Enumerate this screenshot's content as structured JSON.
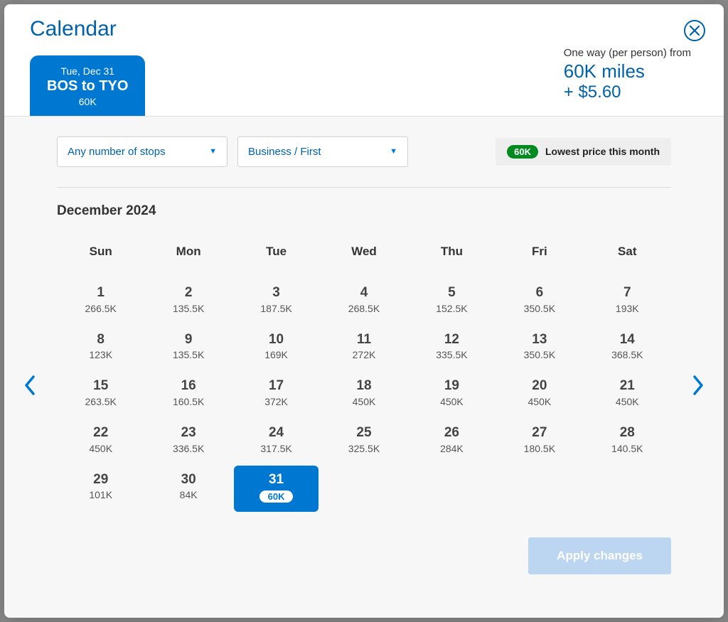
{
  "colors": {
    "brand_blue": "#0078d2",
    "brand_dark_blue": "#0061ab",
    "badge_green": "#008a1f",
    "body_bg": "#f7f7f7",
    "apply_disabled": "#bcd6f2"
  },
  "header": {
    "title": "Calendar",
    "trip": {
      "date": "Tue, Dec 31",
      "route": "BOS to TYO",
      "price": "60K"
    },
    "fare": {
      "label": "One way (per person) from",
      "miles": "60K miles",
      "cash": "+ $5.60"
    }
  },
  "filters": {
    "stops": "Any number of stops",
    "cabin": "Business / First",
    "lowest": {
      "pill": "60K",
      "text": "Lowest price this month"
    }
  },
  "calendar": {
    "month_label": "December 2024",
    "day_headers": [
      "Sun",
      "Mon",
      "Tue",
      "Wed",
      "Thu",
      "Fri",
      "Sat"
    ],
    "days": [
      {
        "n": "1",
        "p": "266.5K"
      },
      {
        "n": "2",
        "p": "135.5K"
      },
      {
        "n": "3",
        "p": "187.5K"
      },
      {
        "n": "4",
        "p": "268.5K"
      },
      {
        "n": "5",
        "p": "152.5K"
      },
      {
        "n": "6",
        "p": "350.5K"
      },
      {
        "n": "7",
        "p": "193K"
      },
      {
        "n": "8",
        "p": "123K"
      },
      {
        "n": "9",
        "p": "135.5K"
      },
      {
        "n": "10",
        "p": "169K"
      },
      {
        "n": "11",
        "p": "272K"
      },
      {
        "n": "12",
        "p": "335.5K"
      },
      {
        "n": "13",
        "p": "350.5K"
      },
      {
        "n": "14",
        "p": "368.5K"
      },
      {
        "n": "15",
        "p": "263.5K"
      },
      {
        "n": "16",
        "p": "160.5K"
      },
      {
        "n": "17",
        "p": "372K"
      },
      {
        "n": "18",
        "p": "450K"
      },
      {
        "n": "19",
        "p": "450K"
      },
      {
        "n": "20",
        "p": "450K"
      },
      {
        "n": "21",
        "p": "450K"
      },
      {
        "n": "22",
        "p": "450K"
      },
      {
        "n": "23",
        "p": "336.5K"
      },
      {
        "n": "24",
        "p": "317.5K"
      },
      {
        "n": "25",
        "p": "325.5K"
      },
      {
        "n": "26",
        "p": "284K"
      },
      {
        "n": "27",
        "p": "180.5K"
      },
      {
        "n": "28",
        "p": "140.5K"
      },
      {
        "n": "29",
        "p": "101K"
      },
      {
        "n": "30",
        "p": "84K"
      },
      {
        "n": "31",
        "p": "60K",
        "selected": true
      }
    ]
  },
  "footer": {
    "apply": "Apply changes"
  }
}
